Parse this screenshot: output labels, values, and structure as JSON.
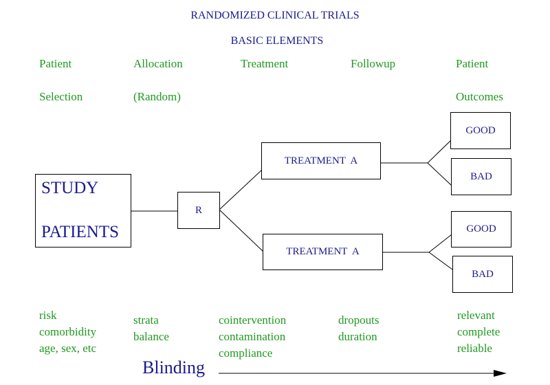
{
  "title": "RANDOMIZED CLINICAL TRIALS",
  "subtitle": "BASIC ELEMENTS",
  "columns": [
    {
      "line1": "Patient",
      "line2": "Selection"
    },
    {
      "line1": "Allocation",
      "line2": "(Random)"
    },
    {
      "line1": "Treatment",
      "line2": ""
    },
    {
      "line1": "Followup",
      "line2": ""
    },
    {
      "line1": "Patient",
      "line2": "Outcomes"
    }
  ],
  "boxes": {
    "study_line1": "STUDY",
    "study_line2": "PATIENTS",
    "random": "R",
    "treatment_top": "TREATMENT  A",
    "treatment_bottom": "TREATMENT  A",
    "good_top": "GOOD",
    "bad_top": "BAD",
    "good_bottom": "GOOD",
    "bad_bottom": "BAD"
  },
  "notes": {
    "selection": [
      "risk",
      "comorbidity",
      "age, sex, etc"
    ],
    "allocation": [
      "strata",
      "balance"
    ],
    "treatment": [
      "cointervention",
      "contamination",
      "compliance"
    ],
    "followup": [
      "dropouts",
      "duration"
    ],
    "outcomes": [
      "relevant",
      "complete",
      "reliable"
    ]
  },
  "blinding": "Blinding"
}
